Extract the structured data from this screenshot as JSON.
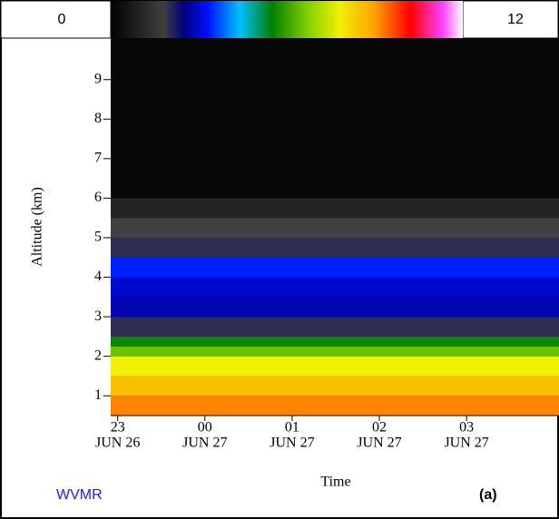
{
  "chart_data": {
    "type": "heatmap",
    "y_label": "Altitude (km)",
    "x_label": "Time",
    "tag": "WVMR",
    "panel": "(a)",
    "ylim": [
      0.5,
      10.05
    ],
    "yticks": [
      1,
      2,
      3,
      4,
      5,
      6,
      7,
      8,
      9
    ],
    "xlim": [
      -0.08,
      5.06
    ],
    "xticks": [
      {
        "value": 0,
        "label": "23"
      },
      {
        "value": 1,
        "label": "00"
      },
      {
        "value": 2,
        "label": "01"
      },
      {
        "value": 3,
        "label": "02"
      },
      {
        "value": 4,
        "label": "03"
      }
    ],
    "tick_dates": [
      "JUN 26",
      "JUN 27",
      "JUN 27",
      "JUN 27",
      "JUN 27"
    ],
    "clim": [
      0,
      12
    ],
    "colormap": [
      [
        0,
        "#000000"
      ],
      [
        1.8,
        "#404040"
      ],
      [
        2.5,
        "#000080"
      ],
      [
        3.3,
        "#0010ff"
      ],
      [
        4.4,
        "#00c0ff"
      ],
      [
        5.5,
        "#008000"
      ],
      [
        6.7,
        "#80d000"
      ],
      [
        7.8,
        "#f0f000"
      ],
      [
        9,
        "#ffa000"
      ],
      [
        10.2,
        "#ff0000"
      ],
      [
        11.3,
        "#ff40ff"
      ],
      [
        12,
        "#ffffff"
      ]
    ],
    "altitude_bins": [
      0.5,
      1.0,
      1.5,
      2.0,
      2.25,
      2.5,
      3.0,
      3.5,
      4.0,
      4.5,
      5.0,
      5.5,
      6.0,
      10.05
    ],
    "values": [
      9.2,
      8.5,
      7.8,
      6.5,
      5.6,
      2.0,
      2.8,
      3.0,
      3.4,
      2.0,
      1.8,
      1.0,
      0.2
    ]
  }
}
